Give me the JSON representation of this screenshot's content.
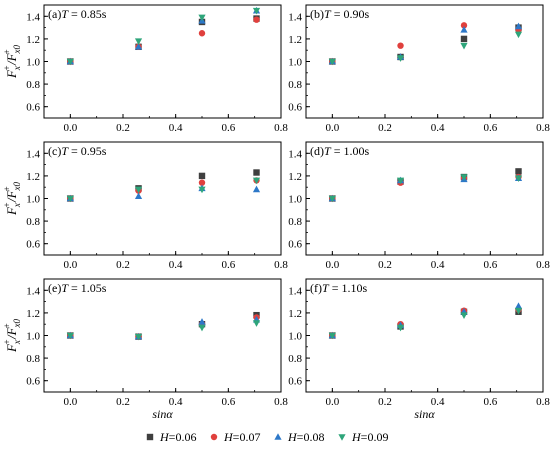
{
  "figure": {
    "y_axis_label": {
      "main": "F",
      "sub1": "x",
      "sup1": "+",
      "slash": "/F",
      "sub2": "x0",
      "sup2": "+"
    },
    "x_axis_label": "sinα"
  },
  "legend": {
    "items": [
      {
        "var": "H",
        "text": "=0.06",
        "color": "#3f3f3f",
        "marker": "square"
      },
      {
        "var": "H",
        "text": "=0.07",
        "color": "#e0403d",
        "marker": "circle"
      },
      {
        "var": "H",
        "text": "=0.08",
        "color": "#2d78c8",
        "marker": "triangle-up"
      },
      {
        "var": "H",
        "text": "=0.09",
        "color": "#2ea57a",
        "marker": "triangle-down"
      }
    ]
  },
  "chart_data": [
    {
      "type": "scatter",
      "label_prefix": "(a)",
      "label_var": "T",
      "label_value": " = 0.85s",
      "xlim": [
        -0.1,
        0.8
      ],
      "ylim": [
        0.5,
        1.5
      ],
      "xticks": [
        "0.0",
        "0.2",
        "0.4",
        "0.6",
        "0.8"
      ],
      "yticks": [
        "0.6",
        "0.8",
        "1.0",
        "1.2",
        "1.4"
      ],
      "x": [
        0.0,
        0.259,
        0.5,
        0.707
      ],
      "series": [
        {
          "name": "H=0.06",
          "values": [
            1.0,
            1.13,
            1.35,
            1.38
          ]
        },
        {
          "name": "H=0.07",
          "values": [
            1.0,
            1.13,
            1.25,
            1.37
          ]
        },
        {
          "name": "H=0.08",
          "values": [
            1.0,
            1.13,
            1.36,
            1.45
          ]
        },
        {
          "name": "H=0.09",
          "values": [
            1.0,
            1.18,
            1.39,
            1.45
          ]
        }
      ]
    },
    {
      "type": "scatter",
      "label_prefix": "(b)",
      "label_var": "T",
      "label_value": " = 0.90s",
      "xlim": [
        -0.1,
        0.8
      ],
      "ylim": [
        0.5,
        1.5
      ],
      "xticks": [
        "0.0",
        "0.2",
        "0.4",
        "0.6",
        "0.8"
      ],
      "yticks": [
        "0.6",
        "0.8",
        "1.0",
        "1.2",
        "1.4"
      ],
      "x": [
        0.0,
        0.259,
        0.5,
        0.707
      ],
      "series": [
        {
          "name": "H=0.06",
          "values": [
            1.0,
            1.04,
            1.2,
            1.3
          ]
        },
        {
          "name": "H=0.07",
          "values": [
            1.0,
            1.14,
            1.32,
            1.28
          ]
        },
        {
          "name": "H=0.08",
          "values": [
            1.0,
            1.04,
            1.28,
            1.31
          ]
        },
        {
          "name": "H=0.09",
          "values": [
            1.0,
            1.03,
            1.14,
            1.24
          ]
        }
      ]
    },
    {
      "type": "scatter",
      "label_prefix": "(c)",
      "label_var": "T",
      "label_value": " = 0.95s",
      "xlim": [
        -0.1,
        0.8
      ],
      "ylim": [
        0.5,
        1.5
      ],
      "xticks": [
        "0.0",
        "0.2",
        "0.4",
        "0.6",
        "0.8"
      ],
      "yticks": [
        "0.6",
        "0.8",
        "1.0",
        "1.2",
        "1.4"
      ],
      "x": [
        0.0,
        0.259,
        0.5,
        0.707
      ],
      "series": [
        {
          "name": "H=0.06",
          "values": [
            1.0,
            1.09,
            1.2,
            1.23
          ]
        },
        {
          "name": "H=0.07",
          "values": [
            1.0,
            1.07,
            1.14,
            1.16
          ]
        },
        {
          "name": "H=0.08",
          "values": [
            1.0,
            1.02,
            1.09,
            1.08
          ]
        },
        {
          "name": "H=0.09",
          "values": [
            1.0,
            1.08,
            1.08,
            1.16
          ]
        }
      ]
    },
    {
      "type": "scatter",
      "label_prefix": "(d)",
      "label_var": "T",
      "label_value": " = 1.00s",
      "xlim": [
        -0.1,
        0.8
      ],
      "ylim": [
        0.5,
        1.5
      ],
      "xticks": [
        "0.0",
        "0.2",
        "0.4",
        "0.6",
        "0.8"
      ],
      "yticks": [
        "0.6",
        "0.8",
        "1.0",
        "1.2",
        "1.4"
      ],
      "x": [
        0.0,
        0.259,
        0.5,
        0.707
      ],
      "series": [
        {
          "name": "H=0.06",
          "values": [
            1.0,
            1.15,
            1.19,
            1.24
          ]
        },
        {
          "name": "H=0.07",
          "values": [
            1.0,
            1.14,
            1.18,
            1.19
          ]
        },
        {
          "name": "H=0.08",
          "values": [
            1.0,
            1.16,
            1.17,
            1.18
          ]
        },
        {
          "name": "H=0.09",
          "values": [
            1.0,
            1.16,
            1.19,
            1.18
          ]
        }
      ]
    },
    {
      "type": "scatter",
      "label_prefix": "(e)",
      "label_var": "T",
      "label_value": " = 1.05s",
      "xlim": [
        -0.1,
        0.8
      ],
      "ylim": [
        0.5,
        1.5
      ],
      "xticks": [
        "0.0",
        "0.2",
        "0.4",
        "0.6",
        "0.8"
      ],
      "yticks": [
        "0.6",
        "0.8",
        "1.0",
        "1.2",
        "1.4"
      ],
      "x": [
        0.0,
        0.259,
        0.5,
        0.707
      ],
      "series": [
        {
          "name": "H=0.06",
          "values": [
            1.0,
            0.99,
            1.1,
            1.18
          ]
        },
        {
          "name": "H=0.07",
          "values": [
            1.0,
            0.99,
            1.1,
            1.16
          ]
        },
        {
          "name": "H=0.08",
          "values": [
            1.0,
            0.99,
            1.12,
            1.14
          ]
        },
        {
          "name": "H=0.09",
          "values": [
            1.0,
            0.99,
            1.07,
            1.11
          ]
        }
      ]
    },
    {
      "type": "scatter",
      "label_prefix": "(f)",
      "label_var": "T",
      "label_value": " = 1.10s",
      "xlim": [
        -0.1,
        0.8
      ],
      "ylim": [
        0.5,
        1.5
      ],
      "xticks": [
        "0.0",
        "0.2",
        "0.4",
        "0.6",
        "0.8"
      ],
      "yticks": [
        "0.6",
        "0.8",
        "1.0",
        "1.2",
        "1.4"
      ],
      "x": [
        0.0,
        0.259,
        0.5,
        0.707
      ],
      "series": [
        {
          "name": "H=0.06",
          "values": [
            1.0,
            1.08,
            1.21,
            1.21
          ]
        },
        {
          "name": "H=0.07",
          "values": [
            1.0,
            1.1,
            1.22,
            1.23
          ]
        },
        {
          "name": "H=0.08",
          "values": [
            1.0,
            1.09,
            1.21,
            1.26
          ]
        },
        {
          "name": "H=0.09",
          "values": [
            1.0,
            1.07,
            1.18,
            1.22
          ]
        }
      ]
    }
  ]
}
